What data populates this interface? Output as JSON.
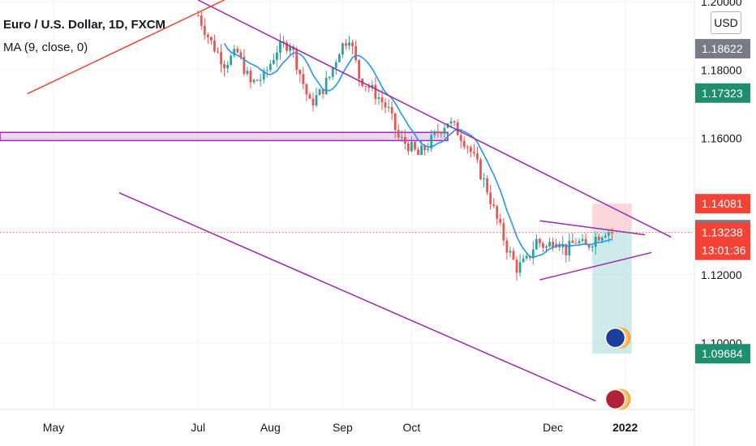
{
  "header": {
    "symbol_title": "Euro / U.S. Dollar, 1D, FXCM",
    "indicator": "MA (9, close, 0)"
  },
  "currency_button": "USD",
  "colors": {
    "up": "#26a69a",
    "down": "#ef5350",
    "ma_line": "#2196f3",
    "purple": "#9c27b0",
    "red_line": "#f44336",
    "grid": "#f0f3fa",
    "text": "#131722"
  },
  "chart_data": {
    "type": "candlestick",
    "symbol": "EURUSD",
    "interval": "1D",
    "ylim": [
      1.0805,
      1.2005
    ],
    "y_ticks": [
      {
        "value": 1.2,
        "label": "1.20000"
      },
      {
        "value": 1.18,
        "label": "1.18000"
      },
      {
        "value": 1.16,
        "label": "1.16000"
      },
      {
        "value": 1.12,
        "label": "1.12000"
      },
      {
        "value": 1.1,
        "label": "1.10000"
      }
    ],
    "x_ticks": [
      {
        "label": "May",
        "bold": false,
        "x_index": 0
      },
      {
        "label": "Jul",
        "bold": false,
        "x_index": 44
      },
      {
        "label": "Aug",
        "bold": false,
        "x_index": 66
      },
      {
        "label": "Sep",
        "bold": false,
        "x_index": 88
      },
      {
        "label": "Oct",
        "bold": false,
        "x_index": 109
      },
      {
        "label": "Dec",
        "bold": false,
        "x_index": 152
      },
      {
        "label": "2022",
        "bold": true,
        "x_index": 174
      }
    ],
    "price_labels": [
      {
        "label": "1.18622",
        "value": 1.18622,
        "color": "#787b86"
      },
      {
        "label": "1.17323",
        "value": 1.17323,
        "color": "#1e8e6e"
      },
      {
        "label": "1.14081",
        "value": 1.14081,
        "color": "#f44336"
      },
      {
        "label": "1.13322",
        "value": 1.13322,
        "color": "#787b86"
      },
      {
        "label": "1.13238",
        "value": 1.13238,
        "color": "#f44336",
        "sub": "13:01:36"
      },
      {
        "label": "1.09684",
        "value": 1.09684,
        "color": "#1e8e6e"
      }
    ],
    "current_price": 1.13238,
    "countdown": "13:01:36",
    "ohlc_close_path": [
      [
        44,
        1.196
      ],
      [
        48,
        1.188
      ],
      [
        52,
        1.182
      ],
      [
        56,
        1.185
      ],
      [
        60,
        1.176
      ],
      [
        64,
        1.178
      ],
      [
        68,
        1.186
      ],
      [
        72,
        1.188
      ],
      [
        75,
        1.179
      ],
      [
        78,
        1.17
      ],
      [
        81,
        1.173
      ],
      [
        84,
        1.178
      ],
      [
        87,
        1.186
      ],
      [
        90,
        1.19
      ],
      [
        93,
        1.178
      ],
      [
        96,
        1.175
      ],
      [
        99,
        1.172
      ],
      [
        102,
        1.168
      ],
      [
        105,
        1.16
      ],
      [
        108,
        1.158
      ],
      [
        111,
        1.155
      ],
      [
        114,
        1.158
      ],
      [
        117,
        1.162
      ],
      [
        120,
        1.165
      ],
      [
        123,
        1.162
      ],
      [
        126,
        1.158
      ],
      [
        129,
        1.152
      ],
      [
        132,
        1.145
      ],
      [
        135,
        1.136
      ],
      [
        138,
        1.128
      ],
      [
        141,
        1.122
      ],
      [
        144,
        1.124
      ],
      [
        147,
        1.13
      ],
      [
        150,
        1.128
      ],
      [
        153,
        1.131
      ],
      [
        156,
        1.127
      ],
      [
        159,
        1.13
      ],
      [
        162,
        1.128
      ],
      [
        165,
        1.131
      ],
      [
        168,
        1.133
      ],
      [
        170,
        1.1324
      ]
    ],
    "pattern_lines": [
      {
        "name": "descending-channel-top",
        "color": "#9c27b0",
        "points": [
          [
            44,
            1.2005
          ],
          [
            188,
            1.131
          ]
        ]
      },
      {
        "name": "descending-channel-bottom",
        "color": "#9c27b0",
        "points": [
          [
            20,
            1.144
          ],
          [
            165,
            1.083
          ]
        ]
      },
      {
        "name": "ascending-trendline",
        "color": "#f44336",
        "points": [
          [
            -8,
            1.173
          ],
          [
            52,
            1.2005
          ]
        ]
      },
      {
        "name": "triangle-upper",
        "color": "#9c27b0",
        "points": [
          [
            148,
            1.1358
          ],
          [
            180,
            1.1317
          ]
        ]
      },
      {
        "name": "triangle-lower",
        "color": "#9c27b0",
        "points": [
          [
            148,
            1.1185
          ],
          [
            182,
            1.1265
          ]
        ]
      }
    ],
    "support_zone": {
      "top": 1.1617,
      "bottom": 1.1593,
      "x_end": 120
    },
    "short_position_box": {
      "entry": 1.13322,
      "stop": 1.14081,
      "target": 1.09684,
      "x_start": 164,
      "x_end": 176
    }
  }
}
